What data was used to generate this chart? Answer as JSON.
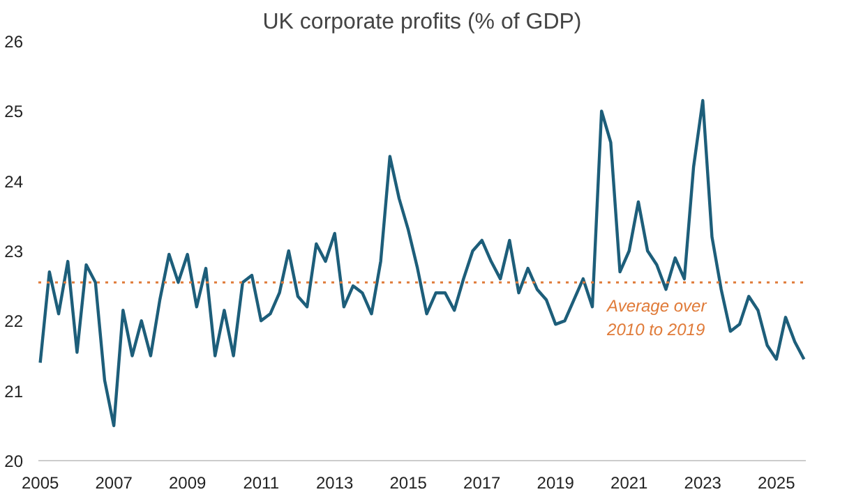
{
  "chart_data": {
    "type": "line",
    "title": "UK corporate profits (% of GDP)",
    "x": [
      2005.0,
      2005.25,
      2005.5,
      2005.75,
      2006.0,
      2006.25,
      2006.5,
      2006.75,
      2007.0,
      2007.25,
      2007.5,
      2007.75,
      2008.0,
      2008.25,
      2008.5,
      2008.75,
      2009.0,
      2009.25,
      2009.5,
      2009.75,
      2010.0,
      2010.25,
      2010.5,
      2010.75,
      2011.0,
      2011.25,
      2011.5,
      2011.75,
      2012.0,
      2012.25,
      2012.5,
      2012.75,
      2013.0,
      2013.25,
      2013.5,
      2013.75,
      2014.0,
      2014.25,
      2014.5,
      2014.75,
      2015.0,
      2015.25,
      2015.5,
      2015.75,
      2016.0,
      2016.25,
      2016.5,
      2016.75,
      2017.0,
      2017.25,
      2017.5,
      2017.75,
      2018.0,
      2018.25,
      2018.5,
      2018.75,
      2019.0,
      2019.25,
      2019.5,
      2019.75,
      2020.0,
      2020.25,
      2020.5,
      2020.75,
      2021.0,
      2021.25,
      2021.5,
      2021.75,
      2022.0,
      2022.25,
      2022.5,
      2022.75,
      2023.0,
      2023.25,
      2023.5,
      2023.75,
      2024.0,
      2024.25,
      2024.5,
      2024.75,
      2025.0,
      2025.25,
      2025.5,
      2025.75
    ],
    "series": [
      {
        "color": "#1d5e7a",
        "values": [
          21.4,
          22.7,
          22.1,
          22.85,
          21.55,
          22.8,
          22.55,
          21.15,
          20.5,
          22.15,
          21.5,
          22.0,
          21.5,
          22.3,
          22.95,
          22.55,
          22.95,
          22.2,
          22.75,
          21.5,
          22.15,
          21.5,
          22.55,
          22.65,
          22.0,
          22.1,
          22.4,
          23.0,
          22.35,
          22.2,
          23.1,
          22.85,
          23.25,
          22.2,
          22.5,
          22.4,
          22.1,
          22.85,
          24.35,
          23.75,
          23.3,
          22.75,
          22.1,
          22.4,
          22.4,
          22.15,
          22.6,
          23.0,
          23.15,
          22.85,
          22.6,
          23.15,
          22.4,
          22.75,
          22.45,
          22.3,
          21.95,
          22.0,
          22.3,
          22.6,
          22.2,
          25.0,
          24.55,
          22.7,
          23.0,
          23.7,
          23.0,
          22.8,
          22.45,
          22.9,
          22.6,
          24.2,
          25.15,
          23.2,
          22.45,
          21.85,
          21.95,
          22.35,
          22.15,
          21.65,
          21.45,
          22.05,
          21.7,
          21.45
        ]
      }
    ],
    "xlim": [
      2004.95,
      2025.8
    ],
    "xticks": [
      2005,
      2007,
      2009,
      2011,
      2013,
      2015,
      2017,
      2019,
      2021,
      2023,
      2025
    ],
    "ylim": [
      20,
      26
    ],
    "yticks": [
      20,
      21,
      22,
      23,
      24,
      25,
      26
    ],
    "grid": false,
    "line_style": "solid",
    "ref_lines": [
      {
        "axis": "y",
        "value": 22.55,
        "label": "Average over\n2010 to 2019",
        "color": "#e07b39",
        "line_style": "dotted"
      }
    ]
  }
}
